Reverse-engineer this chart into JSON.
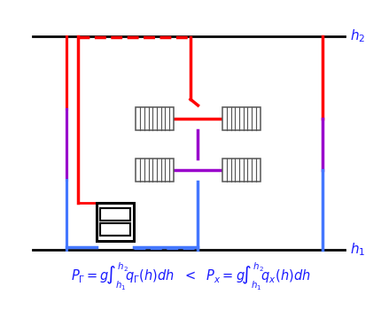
{
  "fig_width": 4.3,
  "fig_height": 3.5,
  "dpi": 100,
  "bg_color": "#ffffff",
  "border_color": "#000000",
  "border_lw": 2.0,
  "label_color": "#1a1aff",
  "label_fontsize": 11,
  "red_color": "#ff0000",
  "blue_color": "#4477ff",
  "purple_color": "#9900cc",
  "pipe_lw": 2.5,
  "radiator_color": "#555555",
  "boiler_color": "#000000",
  "formula_color": "#1a1aff",
  "formula_fontsize": 10.5,
  "xlim": [
    0,
    10
  ],
  "ylim": [
    0,
    10
  ],
  "bx0": 0.8,
  "bx1": 9.1,
  "by0": 1.9,
  "by1": 8.9
}
